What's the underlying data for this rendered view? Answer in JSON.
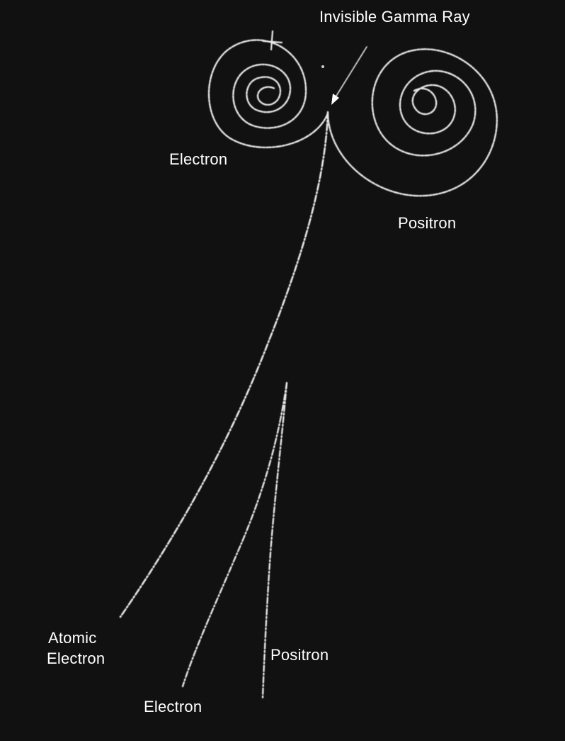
{
  "image": {
    "background_color": "#111111",
    "track_color": "#e8e8e8",
    "subject": "bubble-chamber-pair-production"
  },
  "labels": {
    "gamma_ray": "Invisible Gamma Ray",
    "electron_upper": "Electron",
    "positron_upper": "Positron",
    "atomic_electron_line1": "Atomic",
    "atomic_electron_line2": "Electron",
    "positron_lower": "Positron",
    "electron_lower": "Electron"
  }
}
